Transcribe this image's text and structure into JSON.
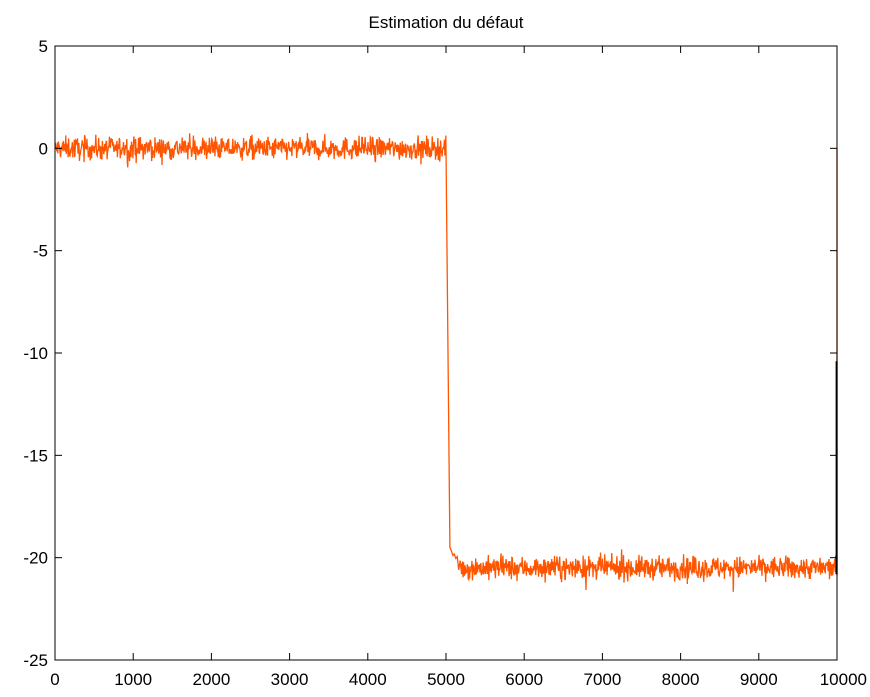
{
  "chart_data": {
    "type": "line",
    "title": "Estimation du défaut",
    "xlabel": "",
    "ylabel": "",
    "xlim": [
      0,
      10000
    ],
    "ylim": [
      -25,
      5
    ],
    "xticks": [
      0,
      1000,
      2000,
      3000,
      4000,
      5000,
      6000,
      7000,
      8000,
      9000,
      10000
    ],
    "yticks": [
      5,
      0,
      -5,
      -10,
      -15,
      -20,
      -25
    ],
    "grid": false,
    "legend": "none",
    "series": [
      {
        "color": "#ff5500",
        "segments": [
          {
            "x_start": 0,
            "x_end": 5000,
            "mean": 0.0,
            "noise_amplitude": 0.5
          },
          {
            "x_start": 5000,
            "x_end": 5050,
            "from": 0.0,
            "to": -19.5
          },
          {
            "x_start": 5050,
            "x_end": 5200,
            "from": -19.5,
            "to": -20.5
          },
          {
            "x_start": 5200,
            "x_end": 10000,
            "mean": -20.5,
            "noise_amplitude": 0.5
          },
          {
            "x_start": 10000,
            "x_end": 10000,
            "from": -20.5,
            "to": 0.0
          }
        ],
        "points": [
          [
            0,
            0.0
          ],
          [
            1000,
            0.1
          ],
          [
            2000,
            -0.1
          ],
          [
            3000,
            0.3
          ],
          [
            4000,
            0.0
          ],
          [
            4990,
            0.1
          ],
          [
            5000,
            0.0
          ],
          [
            5030,
            -19.5
          ],
          [
            5200,
            -20.4
          ],
          [
            6000,
            -20.5
          ],
          [
            7000,
            -20.5
          ],
          [
            8000,
            -20.5
          ],
          [
            9000,
            -20.5
          ],
          [
            9990,
            -20.4
          ],
          [
            10000,
            0.0
          ]
        ]
      },
      {
        "color": "#000000",
        "points": [
          [
            9995,
            -20.8
          ],
          [
            9995,
            -10.4
          ]
        ]
      }
    ]
  }
}
